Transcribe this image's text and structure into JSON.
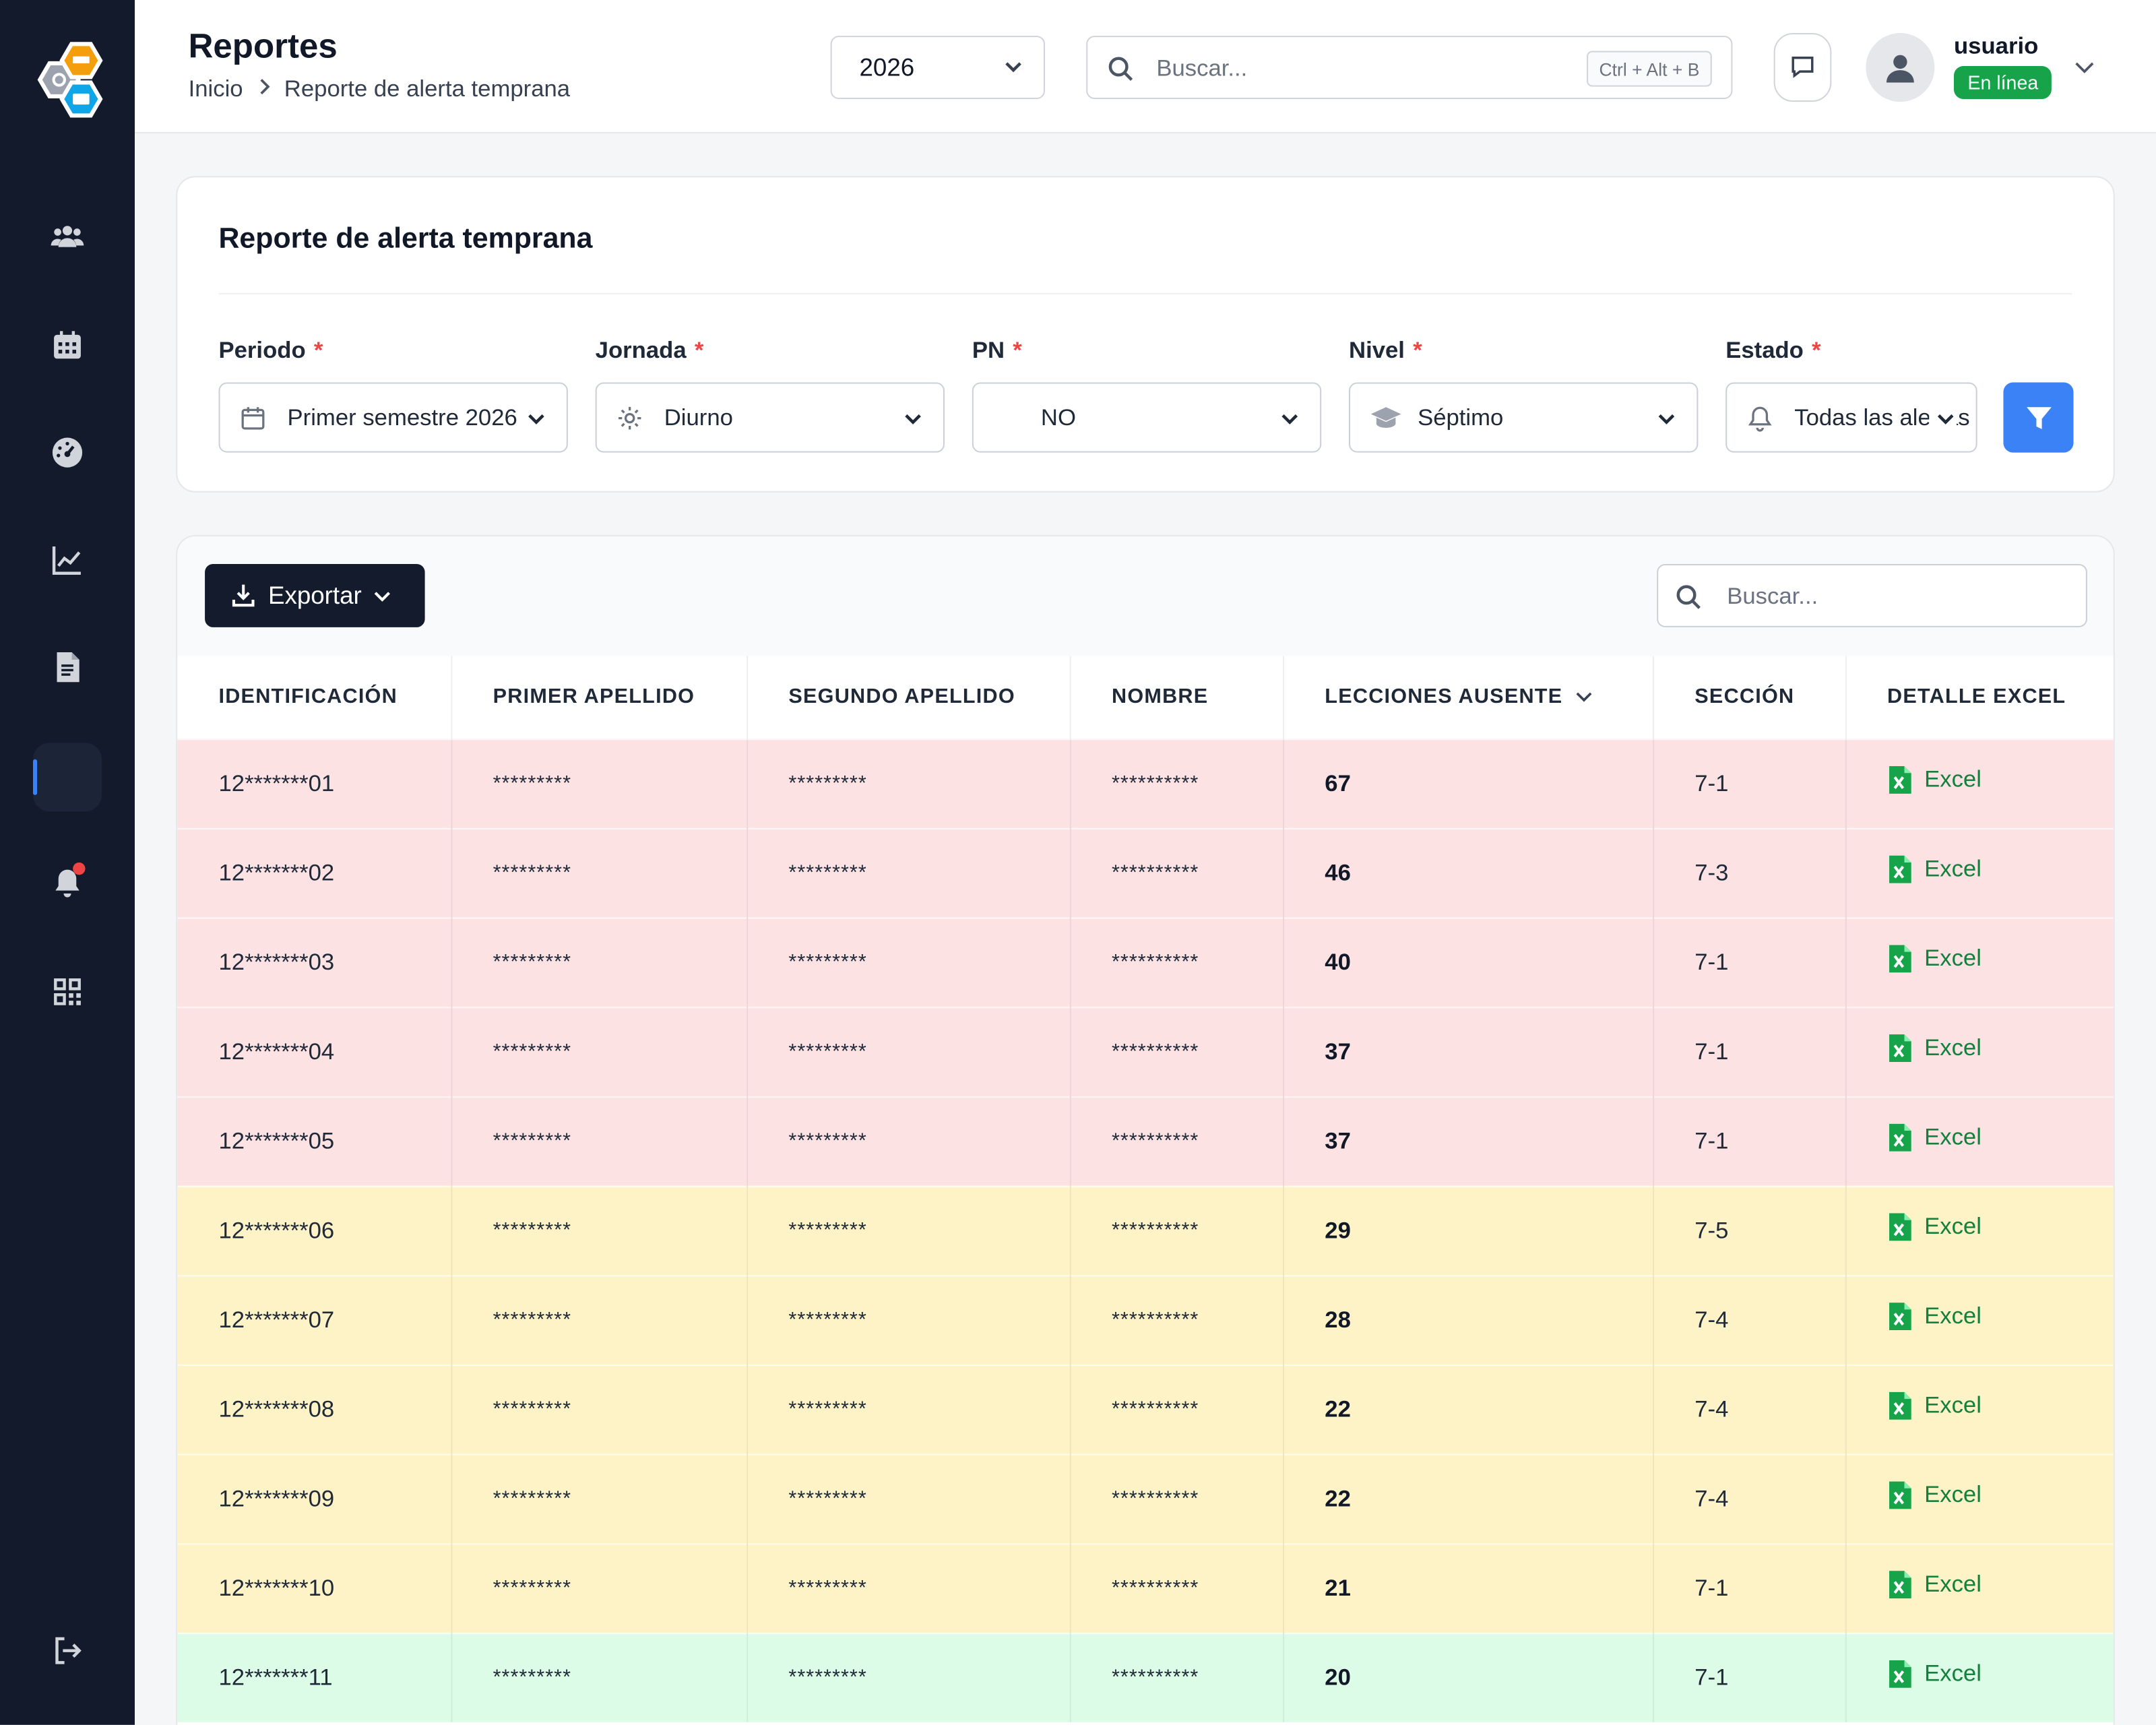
{
  "header": {
    "title": "Reportes",
    "breadcrumb": [
      "Inicio",
      "Reporte de alerta temprana"
    ],
    "year": "2026",
    "search_placeholder": "Buscar...",
    "search_shortcut": "Ctrl + Alt + B",
    "user_name": "usuario",
    "user_status": "En línea"
  },
  "sidebar": {
    "items": [
      {
        "icon": "users-icon"
      },
      {
        "icon": "calendar-icon"
      },
      {
        "icon": "dashboard-gauge-icon"
      },
      {
        "icon": "chart-line-icon"
      },
      {
        "icon": "document-icon"
      },
      {
        "icon": "active-blank-item"
      },
      {
        "icon": "bell-icon",
        "has_notification": true
      },
      {
        "icon": "qr-code-icon"
      },
      {
        "icon": "logout-icon"
      }
    ]
  },
  "filters": {
    "card_title": "Reporte de alerta temprana",
    "required_mark": "*",
    "fields": [
      {
        "label": "Periodo",
        "value": "Primer semestre 2026",
        "icon": "calendar-icon"
      },
      {
        "label": "Jornada",
        "value": "Diurno",
        "icon": "gear-icon"
      },
      {
        "label": "PN",
        "value": "NO",
        "icon": ""
      },
      {
        "label": "Nivel",
        "value": "Séptimo",
        "icon": "graduation-cap-icon"
      },
      {
        "label": "Estado",
        "value": "Todas las alertas",
        "icon": "bell-icon"
      }
    ]
  },
  "table": {
    "export_label": "Exportar",
    "search_placeholder": "Buscar...",
    "columns": [
      "IDENTIFICACIÓN",
      "PRIMER APELLIDO",
      "SEGUNDO APELLIDO",
      "NOMBRE",
      "LECCIONES AUSENTE",
      "SECCIÓN",
      "DETALLE EXCEL"
    ],
    "rows": [
      {
        "id": "12*******01",
        "apellido1": "*********",
        "apellido2": "*********",
        "nombre": "**********",
        "lecciones": "67",
        "seccion": "7-1",
        "excel": "Excel",
        "level": "high"
      },
      {
        "id": "12*******02",
        "apellido1": "*********",
        "apellido2": "*********",
        "nombre": "**********",
        "lecciones": "46",
        "seccion": "7-3",
        "excel": "Excel",
        "level": "high"
      },
      {
        "id": "12*******03",
        "apellido1": "*********",
        "apellido2": "*********",
        "nombre": "**********",
        "lecciones": "40",
        "seccion": "7-1",
        "excel": "Excel",
        "level": "high"
      },
      {
        "id": "12*******04",
        "apellido1": "*********",
        "apellido2": "*********",
        "nombre": "**********",
        "lecciones": "37",
        "seccion": "7-1",
        "excel": "Excel",
        "level": "high"
      },
      {
        "id": "12*******05",
        "apellido1": "*********",
        "apellido2": "*********",
        "nombre": "**********",
        "lecciones": "37",
        "seccion": "7-1",
        "excel": "Excel",
        "level": "high"
      },
      {
        "id": "12*******06",
        "apellido1": "*********",
        "apellido2": "*********",
        "nombre": "**********",
        "lecciones": "29",
        "seccion": "7-5",
        "excel": "Excel",
        "level": "mid"
      },
      {
        "id": "12*******07",
        "apellido1": "*********",
        "apellido2": "*********",
        "nombre": "**********",
        "lecciones": "28",
        "seccion": "7-4",
        "excel": "Excel",
        "level": "mid"
      },
      {
        "id": "12*******08",
        "apellido1": "*********",
        "apellido2": "*********",
        "nombre": "**********",
        "lecciones": "22",
        "seccion": "7-4",
        "excel": "Excel",
        "level": "mid"
      },
      {
        "id": "12*******09",
        "apellido1": "*********",
        "apellido2": "*********",
        "nombre": "**********",
        "lecciones": "22",
        "seccion": "7-4",
        "excel": "Excel",
        "level": "mid"
      },
      {
        "id": "12*******10",
        "apellido1": "*********",
        "apellido2": "*********",
        "nombre": "**********",
        "lecciones": "21",
        "seccion": "7-1",
        "excel": "Excel",
        "level": "mid"
      },
      {
        "id": "12*******11",
        "apellido1": "*********",
        "apellido2": "*********",
        "nombre": "**********",
        "lecciones": "20",
        "seccion": "7-1",
        "excel": "Excel",
        "level": "low"
      }
    ]
  },
  "colors": {
    "sidebar_bg": "#131a2b",
    "accent": "#3b82f6",
    "status_online": "#16a34a",
    "row_high": "#fde2e4",
    "row_mid": "#fef3c7",
    "row_low": "#dcfce7",
    "excel_green": "#15803d"
  }
}
